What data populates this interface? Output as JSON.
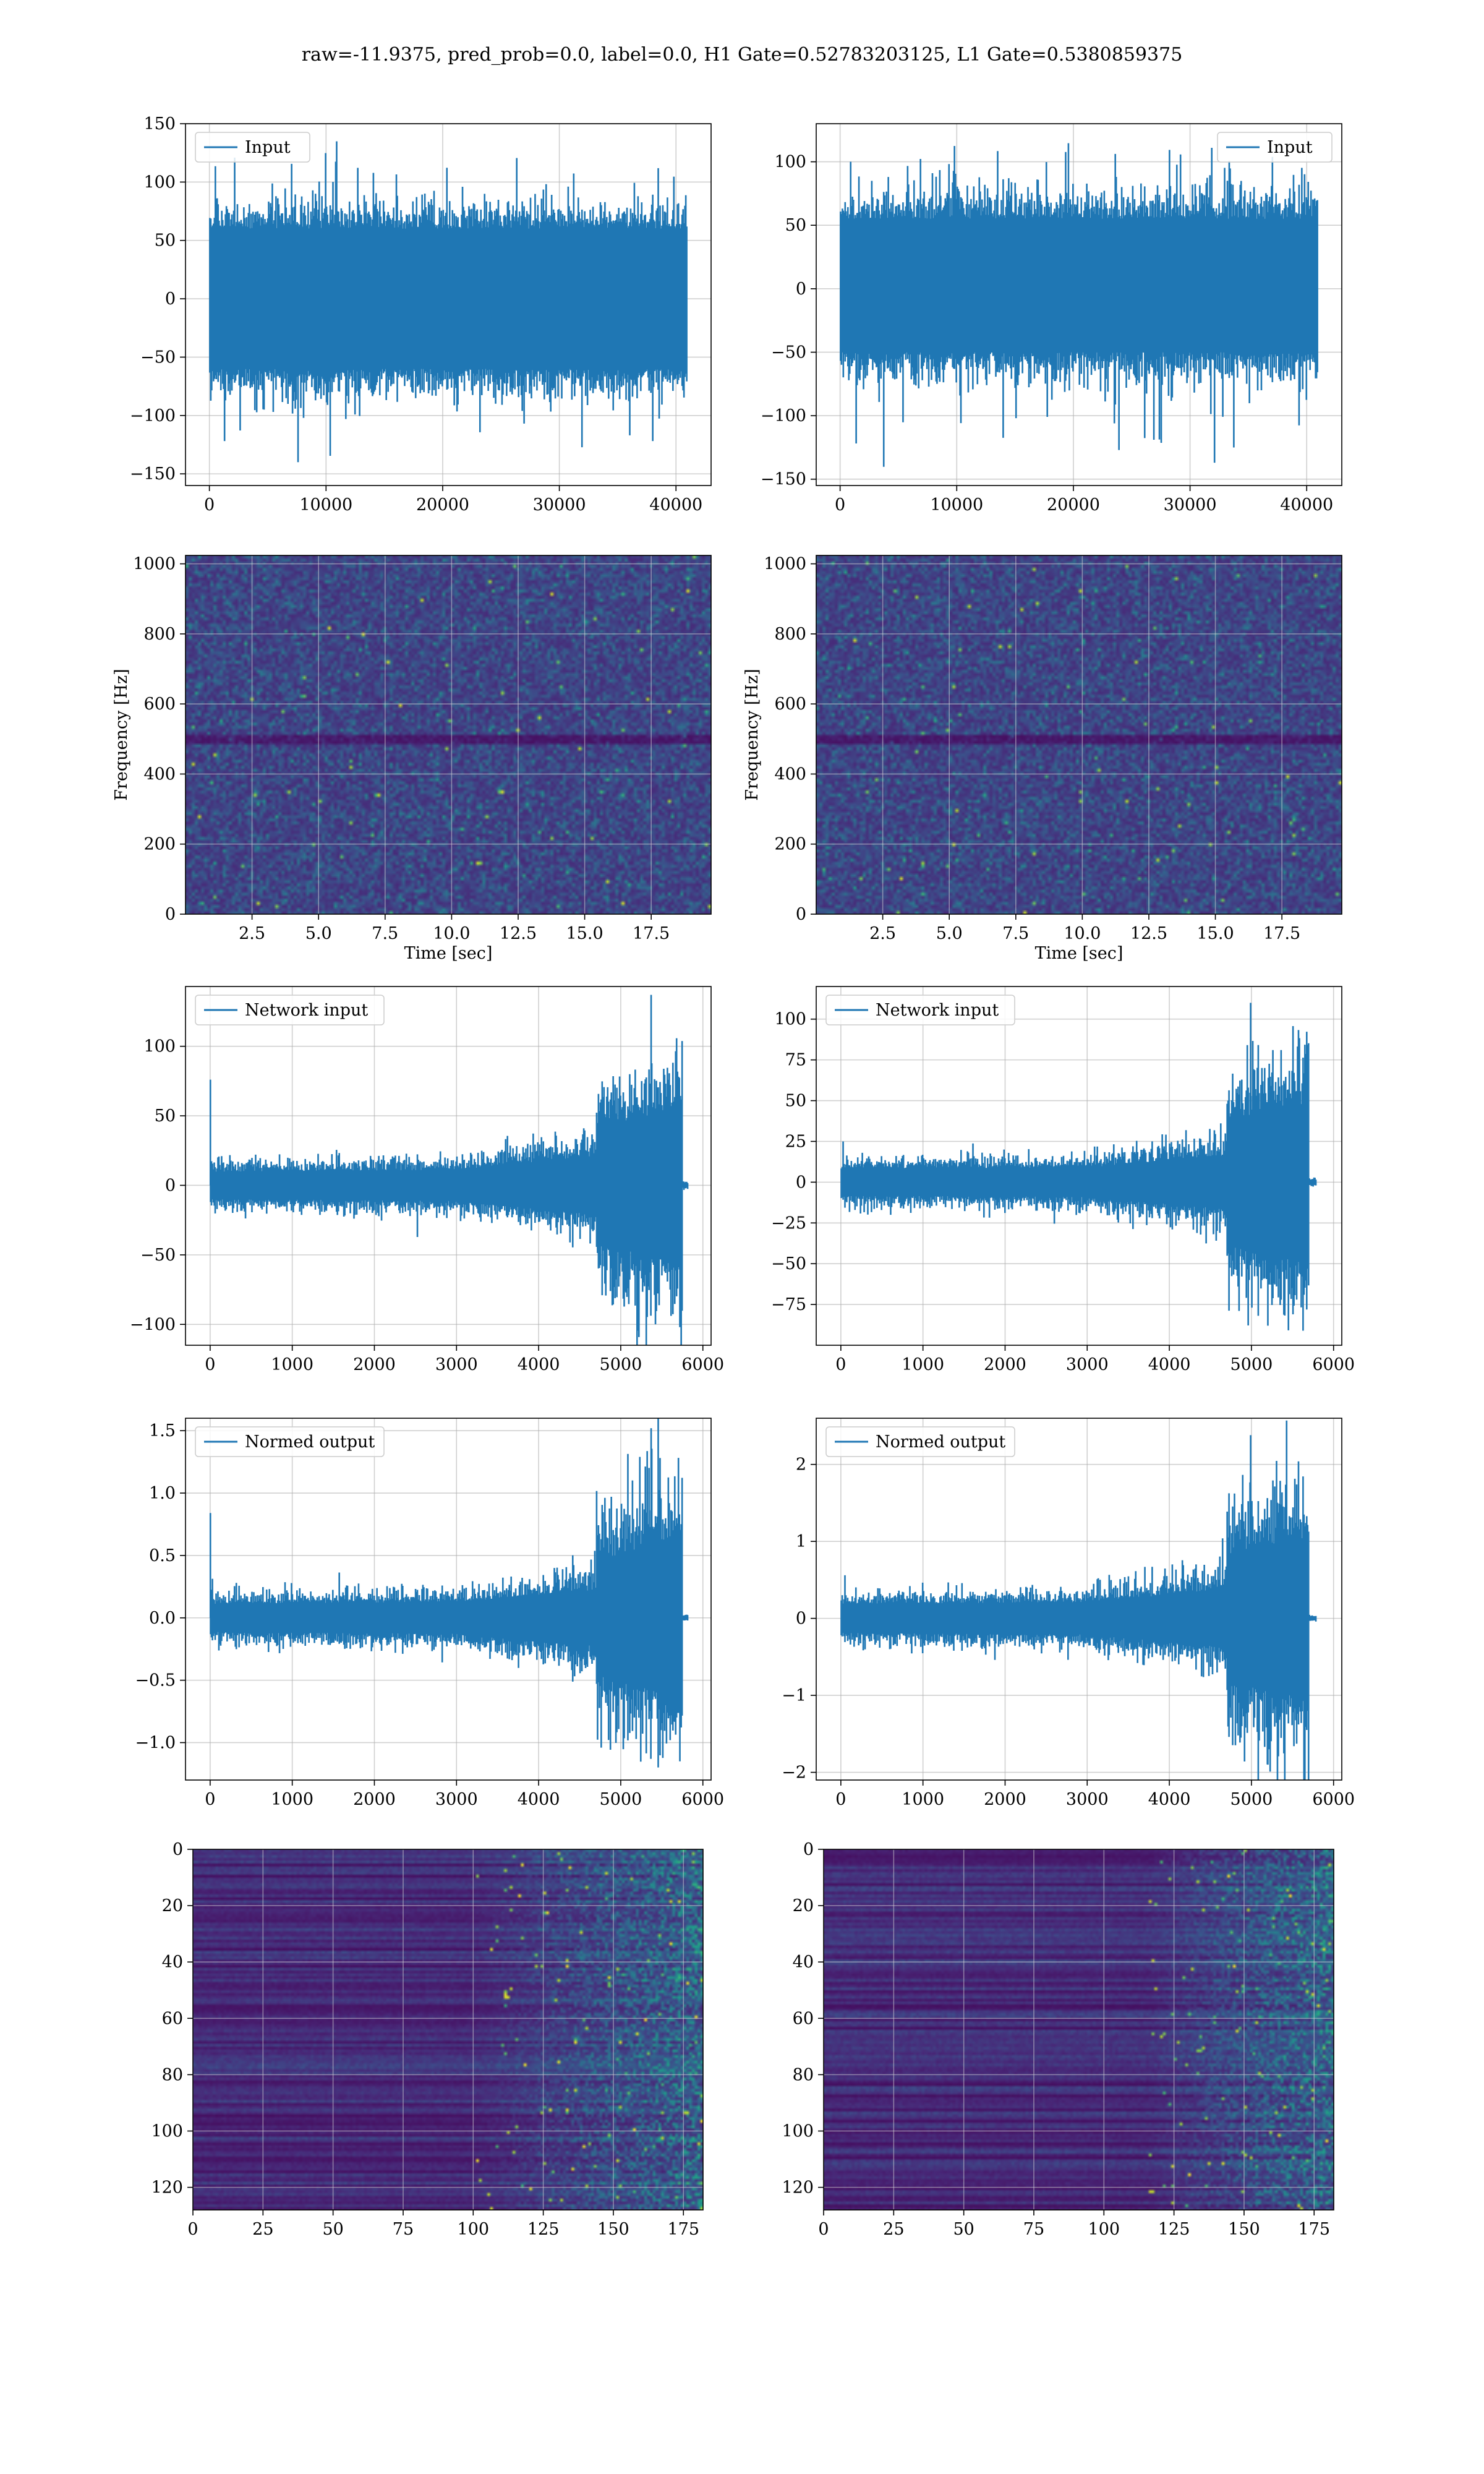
{
  "suptitle": "raw=-11.9375, pred_prob=0.0, label=0.0, H1 Gate=0.52783203125, L1 Gate=0.5380859375",
  "colors": {
    "series": "#1f77b4",
    "grid": "#b0b0b0",
    "spine": "#000000",
    "viridis_low": "#440154",
    "viridis_high": "#fde725"
  },
  "chart_data": [
    {
      "id": "input-h1",
      "type": "line",
      "legend": "Input",
      "legend_loc": "upper left",
      "grid": true,
      "xlim": [
        -2048,
        43008
      ],
      "ylim": [
        -160,
        150
      ],
      "xticks": [
        0,
        10000,
        20000,
        30000,
        40000
      ],
      "yticks": [
        -150,
        -100,
        -50,
        0,
        50,
        100,
        150
      ],
      "series": [
        {
          "name": "Input",
          "x_range": [
            0,
            40960
          ],
          "envelope": [
            -140,
            138
          ],
          "core_band": [
            -60,
            60
          ]
        }
      ]
    },
    {
      "id": "input-l1",
      "type": "line",
      "legend": "Input",
      "legend_loc": "upper right",
      "grid": true,
      "xlim": [
        -2048,
        43008
      ],
      "ylim": [
        -155,
        130
      ],
      "xticks": [
        0,
        10000,
        20000,
        30000,
        40000
      ],
      "yticks": [
        -150,
        -100,
        -50,
        0,
        50,
        100
      ],
      "series": [
        {
          "name": "Input",
          "x_range": [
            0,
            40960
          ],
          "envelope": [
            -145,
            130
          ],
          "core_band": [
            -50,
            55
          ]
        }
      ]
    },
    {
      "id": "spec-h1",
      "type": "heatmap",
      "colormap": "viridis",
      "grid": true,
      "xlabel": "Time [sec]",
      "ylabel": "Frequency [Hz]",
      "xlim": [
        0,
        19.75
      ],
      "ylim": [
        0,
        1024
      ],
      "xticks": [
        2.5,
        5.0,
        7.5,
        10.0,
        12.5,
        15.0,
        17.5
      ],
      "yticks": [
        0,
        200,
        400,
        600,
        800,
        1000
      ],
      "features": [
        {
          "kind": "dark_band",
          "freq_hz": 500
        }
      ]
    },
    {
      "id": "spec-l1",
      "type": "heatmap",
      "colormap": "viridis",
      "grid": true,
      "xlabel": "Time [sec]",
      "ylabel": "Frequency [Hz]",
      "xlim": [
        0,
        19.75
      ],
      "ylim": [
        0,
        1024
      ],
      "xticks": [
        2.5,
        5.0,
        7.5,
        10.0,
        12.5,
        15.0,
        17.5
      ],
      "yticks": [
        0,
        200,
        400,
        600,
        800,
        1000
      ],
      "features": [
        {
          "kind": "dark_band",
          "freq_hz": 500
        }
      ]
    },
    {
      "id": "network-h1",
      "type": "line",
      "legend": "Network input",
      "legend_loc": "upper left",
      "grid": true,
      "xlim": [
        -300,
        6100
      ],
      "ylim": [
        -115,
        143
      ],
      "xticks": [
        0,
        1000,
        2000,
        3000,
        4000,
        5000,
        6000
      ],
      "yticks": [
        -100,
        -50,
        0,
        50,
        100
      ],
      "series": [
        {
          "name": "Network input",
          "segments": [
            {
              "x": [
                0,
                3000
              ],
              "amplitude": [
                13,
                15
              ]
            },
            {
              "x": [
                3000,
                4700
              ],
              "amplitude": [
                15,
                28
              ]
            },
            {
              "x": [
                4700,
                5750
              ],
              "amplitude": [
                55,
                75
              ]
            },
            {
              "x": [
                5750,
                5820
              ],
              "amplitude": [
                2,
                2
              ]
            }
          ],
          "peaks": [
            {
              "x": 3,
              "y": 76
            },
            {
              "x": 5370,
              "y": 137
            },
            {
              "x": 5720,
              "y": -102
            }
          ]
        }
      ]
    },
    {
      "id": "network-l1",
      "type": "line",
      "legend": "Network input",
      "legend_loc": "upper left",
      "grid": true,
      "xlim": [
        -300,
        6100
      ],
      "ylim": [
        -100,
        120
      ],
      "xticks": [
        0,
        1000,
        2000,
        3000,
        4000,
        5000,
        6000
      ],
      "yticks": [
        -75,
        -50,
        -25,
        0,
        25,
        50,
        75,
        100
      ],
      "series": [
        {
          "name": "Network input",
          "segments": [
            {
              "x": [
                0,
                3000
              ],
              "amplitude": [
                11,
                12
              ]
            },
            {
              "x": [
                3000,
                4700
              ],
              "amplitude": [
                12,
                22
              ]
            },
            {
              "x": [
                4700,
                5700
              ],
              "amplitude": [
                50,
                65
              ]
            },
            {
              "x": [
                5700,
                5790
              ],
              "amplitude": [
                2,
                2
              ]
            }
          ],
          "peaks": [
            {
              "x": 4990,
              "y": 110
            },
            {
              "x": 5200,
              "y": -88
            }
          ]
        }
      ]
    },
    {
      "id": "normed-h1",
      "type": "line",
      "legend": "Normed output",
      "legend_loc": "upper left",
      "grid": true,
      "xlim": [
        -300,
        6100
      ],
      "ylim": [
        -1.3,
        1.6
      ],
      "xticks": [
        0,
        1000,
        2000,
        3000,
        4000,
        5000,
        6000
      ],
      "yticks": [
        -1.0,
        -0.5,
        0.0,
        0.5,
        1.0,
        1.5
      ],
      "series": [
        {
          "name": "Normed output",
          "segments": [
            {
              "x": [
                0,
                3000
              ],
              "amplitude": [
                0.15,
                0.17
              ]
            },
            {
              "x": [
                3000,
                4700
              ],
              "amplitude": [
                0.17,
                0.3
              ]
            },
            {
              "x": [
                4700,
                5750
              ],
              "amplitude": [
                0.6,
                0.85
              ]
            },
            {
              "x": [
                5750,
                5820
              ],
              "amplitude": [
                0.02,
                0.02
              ]
            }
          ],
          "peaks": [
            {
              "x": 3,
              "y": 0.84
            },
            {
              "x": 5370,
              "y": 1.52
            },
            {
              "x": 5720,
              "y": -1.15
            }
          ]
        }
      ]
    },
    {
      "id": "normed-l1",
      "type": "line",
      "legend": "Normed output",
      "legend_loc": "upper left",
      "grid": true,
      "xlim": [
        -300,
        6100
      ],
      "ylim": [
        -2.1,
        2.6
      ],
      "xticks": [
        0,
        1000,
        2000,
        3000,
        4000,
        5000,
        6000
      ],
      "yticks": [
        -2,
        -1,
        0,
        1,
        2
      ],
      "series": [
        {
          "name": "Normed output",
          "segments": [
            {
              "x": [
                0,
                3000
              ],
              "amplitude": [
                0.25,
                0.28
              ]
            },
            {
              "x": [
                3000,
                4700
              ],
              "amplitude": [
                0.28,
                0.5
              ]
            },
            {
              "x": [
                4700,
                5700
              ],
              "amplitude": [
                1.1,
                1.4
              ]
            },
            {
              "x": [
                5700,
                5790
              ],
              "amplitude": [
                0.03,
                0.03
              ]
            }
          ],
          "peaks": [
            {
              "x": 4990,
              "y": 2.38
            },
            {
              "x": 5200,
              "y": -1.9
            }
          ]
        }
      ]
    },
    {
      "id": "features-h1",
      "type": "heatmap",
      "colormap": "viridis",
      "grid": true,
      "xlim": [
        0,
        182
      ],
      "ylim": [
        128,
        0
      ],
      "xticks": [
        0,
        25,
        50,
        75,
        100,
        125,
        150,
        175
      ],
      "yticks": [
        0,
        20,
        40,
        60,
        80,
        100,
        120
      ],
      "features": [
        {
          "kind": "activity_onset_column",
          "x": 100
        }
      ]
    },
    {
      "id": "features-l1",
      "type": "heatmap",
      "colormap": "viridis",
      "grid": true,
      "xlim": [
        0,
        182
      ],
      "ylim": [
        128,
        0
      ],
      "xticks": [
        0,
        25,
        50,
        75,
        100,
        125,
        150,
        175
      ],
      "yticks": [
        0,
        20,
        40,
        60,
        80,
        100,
        120
      ],
      "features": [
        {
          "kind": "activity_onset_column",
          "x": 115
        }
      ]
    }
  ]
}
